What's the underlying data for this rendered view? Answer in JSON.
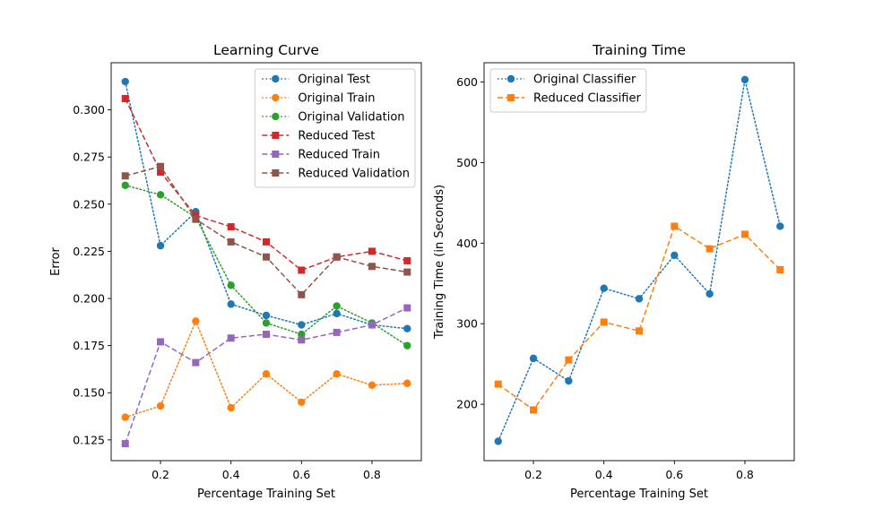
{
  "chart_data": [
    {
      "type": "line",
      "title": "Learning Curve",
      "xlabel": "Percentage Training Set",
      "ylabel": "Error",
      "xlim": [
        0.06,
        0.94
      ],
      "ylim": [
        0.114,
        0.325
      ],
      "x_ticks": [
        0.2,
        0.4,
        0.6,
        0.8
      ],
      "x_tick_labels": [
        "0.2",
        "0.4",
        "0.6",
        "0.8"
      ],
      "y_ticks": [
        0.125,
        0.15,
        0.175,
        0.2,
        0.225,
        0.25,
        0.275,
        0.3
      ],
      "y_tick_labels": [
        "0.125",
        "0.150",
        "0.175",
        "0.200",
        "0.225",
        "0.250",
        "0.275",
        "0.300"
      ],
      "grid": false,
      "legend_position": "top-right",
      "x": [
        0.1,
        0.2,
        0.3,
        0.4,
        0.5,
        0.6,
        0.7,
        0.8,
        0.9
      ],
      "series": [
        {
          "name": "Original Test",
          "color": "#1f77b4",
          "style": "dotted",
          "marker": "circle",
          "values": [
            0.315,
            0.228,
            0.246,
            0.197,
            0.191,
            0.186,
            0.192,
            0.186,
            0.184
          ]
        },
        {
          "name": "Original Train",
          "color": "#ff7f0e",
          "style": "dotted",
          "marker": "circle",
          "values": [
            0.137,
            0.143,
            0.188,
            0.142,
            0.16,
            0.145,
            0.16,
            0.154,
            0.155
          ]
        },
        {
          "name": "Original Validation",
          "color": "#2ca02c",
          "style": "dotted",
          "marker": "circle",
          "values": [
            0.26,
            0.255,
            0.243,
            0.207,
            0.187,
            0.181,
            0.196,
            0.187,
            0.175
          ]
        },
        {
          "name": "Reduced Test",
          "color": "#d62728",
          "style": "dashed",
          "marker": "square",
          "values": [
            0.306,
            0.267,
            0.244,
            0.238,
            0.23,
            0.215,
            0.222,
            0.225,
            0.22
          ]
        },
        {
          "name": "Reduced Train",
          "color": "#9467bd",
          "style": "dashed",
          "marker": "square",
          "values": [
            0.123,
            0.177,
            0.166,
            0.179,
            0.181,
            0.178,
            0.182,
            0.186,
            0.195
          ]
        },
        {
          "name": "Reduced Validation",
          "color": "#8c564b",
          "style": "dashed",
          "marker": "square",
          "values": [
            0.265,
            0.27,
            0.242,
            0.23,
            0.222,
            0.202,
            0.222,
            0.217,
            0.214
          ]
        }
      ]
    },
    {
      "type": "line",
      "title": "Training Time",
      "xlabel": "Percentage Training Set",
      "ylabel": "Training Time (in Seconds)",
      "xlim": [
        0.06,
        0.94
      ],
      "ylim": [
        130,
        624
      ],
      "x_ticks": [
        0.2,
        0.4,
        0.6,
        0.8
      ],
      "x_tick_labels": [
        "0.2",
        "0.4",
        "0.6",
        "0.8"
      ],
      "y_ticks": [
        200,
        300,
        400,
        500,
        600
      ],
      "y_tick_labels": [
        "200",
        "300",
        "400",
        "500",
        "600"
      ],
      "grid": false,
      "legend_position": "top-left",
      "x": [
        0.1,
        0.2,
        0.3,
        0.4,
        0.5,
        0.6,
        0.7,
        0.8,
        0.9
      ],
      "series": [
        {
          "name": "Original Classifier",
          "color": "#1f77b4",
          "style": "dotted",
          "marker": "circle",
          "values": [
            154,
            257,
            229,
            344,
            331,
            385,
            337,
            603,
            421
          ]
        },
        {
          "name": "Reduced Classifier",
          "color": "#ff7f0e",
          "style": "dashed",
          "marker": "square",
          "values": [
            225,
            193,
            255,
            302,
            291,
            421,
            393,
            411,
            367
          ]
        }
      ]
    }
  ]
}
